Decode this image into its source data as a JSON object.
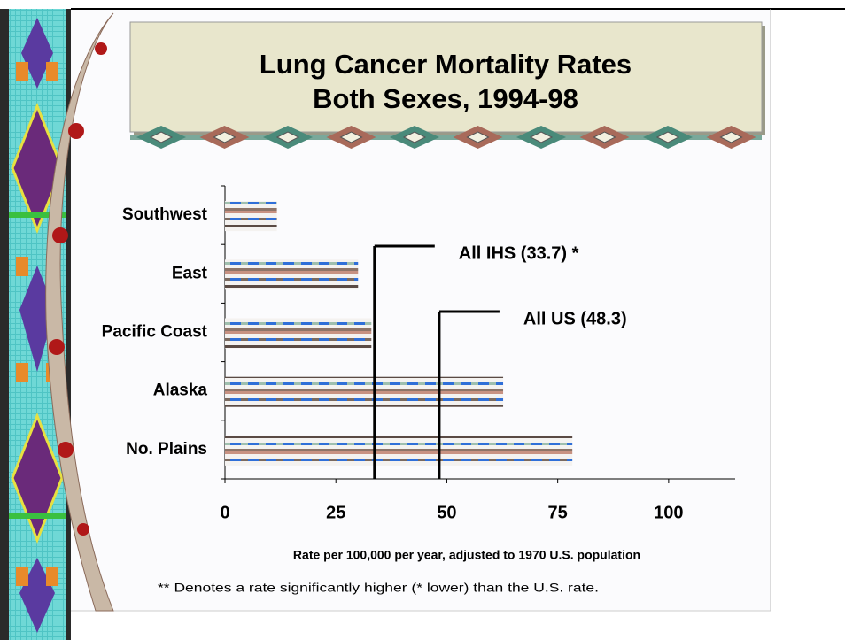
{
  "chart_data": {
    "type": "hbar",
    "title": [
      "Lung Cancer Mortality Rates",
      "Both Sexes, 1994-98"
    ],
    "categories": [
      "Southwest",
      "East",
      "Pacific Coast",
      "Alaska",
      "No. Plains"
    ],
    "values": [
      11.7,
      30,
      33,
      62.7,
      78.3
    ],
    "xlim": [
      0,
      115
    ],
    "xticks": [
      0,
      25,
      50,
      75,
      100
    ],
    "xlabel": "Rate per 100,000 per year, adjusted to 1970 U.S. population",
    "ref_lines": [
      {
        "value": 33.7,
        "label": "All IHS (33.7) *"
      },
      {
        "value": 48.3,
        "label": "All US (48.3)"
      }
    ],
    "footnote": "** Denotes a rate significantly higher (* lower) than the U.S. rate."
  }
}
